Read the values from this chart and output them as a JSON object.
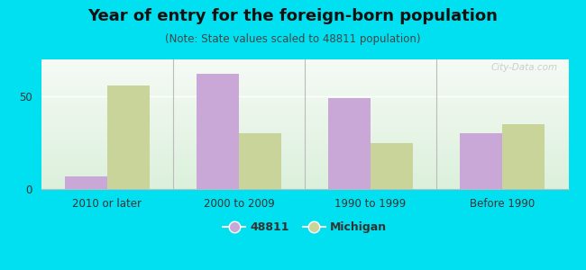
{
  "title": "Year of entry for the foreign-born population",
  "subtitle": "(Note: State values scaled to 48811 population)",
  "categories": [
    "2010 or later",
    "2000 to 2009",
    "1990 to 1999",
    "Before 1990"
  ],
  "values_48811": [
    7,
    62,
    49,
    30
  ],
  "values_michigan": [
    56,
    30,
    25,
    35
  ],
  "bar_color_48811": "#c9a8d8",
  "bar_color_michigan": "#c8d49a",
  "background_outer": "#00e0f0",
  "ylim": [
    0,
    70
  ],
  "yticks": [
    0,
    50
  ],
  "legend_label_48811": "48811",
  "legend_label_michigan": "Michigan",
  "title_fontsize": 13,
  "subtitle_fontsize": 8.5,
  "axis_fontsize": 8.5,
  "legend_fontsize": 9,
  "bar_width": 0.32,
  "watermark": "City-Data.com"
}
